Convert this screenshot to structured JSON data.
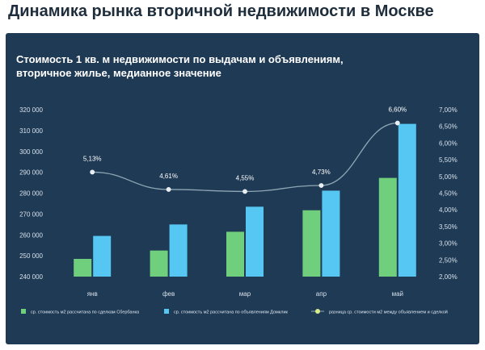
{
  "page": {
    "title": "Динамика рынка вторичной недвижимости в Москве"
  },
  "chart_data": {
    "type": "bar",
    "title_lines": [
      "Стоимость 1 кв. м недвижимости по выдачам и объявлениям,",
      "вторичное жилье, медианное значение"
    ],
    "categories": [
      "янв",
      "фев",
      "мар",
      "апр",
      "май"
    ],
    "ylim": [
      240000,
      320000
    ],
    "yticks": [
      "240 000",
      "250 000",
      "260 000",
      "270 000",
      "280 000",
      "290 000",
      "300 000",
      "310 000",
      "320 000"
    ],
    "y2lim": [
      2.0,
      7.0
    ],
    "y2ticks": [
      "2,00%",
      "2,50%",
      "3,00%",
      "3,50%",
      "4,00%",
      "4,50%",
      "5,00%",
      "5,50%",
      "6,00%",
      "6,50%",
      "7,00%"
    ],
    "grid": false,
    "legend_position": "bottom",
    "series": [
      {
        "name": "ср. стоимость м2 рассчитана по сделкам Сбербанка",
        "type": "bar",
        "color": "#6fcf7c",
        "values": [
          248500,
          252500,
          261500,
          271800,
          287300
        ]
      },
      {
        "name": "ср. стоимость м2 рассчитана по объявлениям Домклик",
        "type": "bar",
        "color": "#56c6f2",
        "values": [
          259500,
          265000,
          273500,
          281200,
          313200
        ]
      },
      {
        "name": "разница ср. стоимости м2 между объявлением и сделкой",
        "type": "line",
        "axis": "right",
        "color": "#8fa6b6",
        "marker_color": "#d8ec8a",
        "values": [
          5.13,
          4.61,
          4.55,
          4.73,
          6.6
        ],
        "labels": [
          "5,13%",
          "4,61%",
          "4,55%",
          "4,73%",
          "6,60%"
        ]
      }
    ]
  }
}
